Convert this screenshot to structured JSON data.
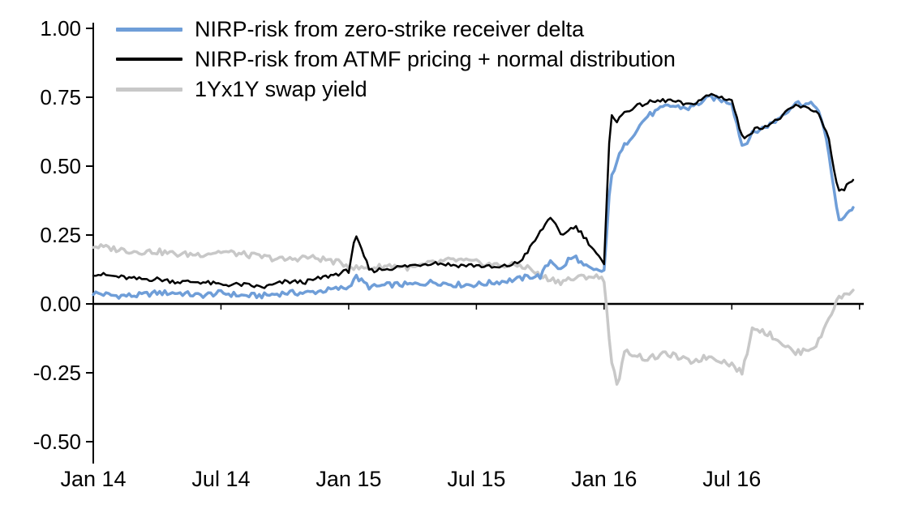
{
  "chart_data": {
    "type": "line",
    "title": "",
    "xlabel": "",
    "ylabel": "",
    "grid": false,
    "legend_position": "top-left",
    "zero_line": true,
    "x_unit": "months since Jan 2014",
    "xlim": [
      0,
      36.2
    ],
    "ylim": [
      -0.5,
      1.0
    ],
    "y_ticks": [
      1.0,
      0.75,
      0.5,
      0.25,
      0.0,
      -0.25,
      -0.5
    ],
    "y_tick_labels": [
      "1.00",
      "0.75",
      "0.50",
      "0.25",
      "0.00",
      "-0.25",
      "-0.50"
    ],
    "x_ticks": [
      0,
      6,
      12,
      18,
      24,
      30
    ],
    "x_tick_labels": [
      "Jan 14",
      "Jul 14",
      "Jan 15",
      "Jul 15",
      "Jan 16",
      "Jul 16"
    ],
    "axis_color": "#000000",
    "x": [
      0,
      1,
      2,
      3,
      4,
      5,
      6,
      7,
      8,
      9,
      10,
      11,
      12,
      12.3,
      13,
      14,
      15,
      16,
      17,
      18,
      19,
      20,
      20.5,
      21,
      21.5,
      22,
      22.3,
      22.7,
      23,
      23.5,
      24,
      24.3,
      24.6,
      25,
      26,
      27,
      28,
      29,
      30,
      30.5,
      31,
      32,
      33,
      34,
      34.5,
      35,
      35.7
    ],
    "series": [
      {
        "id": "zero-strike-delta",
        "name": "NIRP-risk from zero-strike receiver delta",
        "color": "#6f9ed8",
        "width": 3.5,
        "values": [
          0.04,
          0.03,
          0.03,
          0.04,
          0.04,
          0.03,
          0.04,
          0.03,
          0.03,
          0.04,
          0.04,
          0.05,
          0.06,
          0.1,
          0.06,
          0.07,
          0.07,
          0.08,
          0.07,
          0.07,
          0.08,
          0.09,
          0.1,
          0.1,
          0.16,
          0.12,
          0.16,
          0.17,
          0.14,
          0.12,
          0.12,
          0.45,
          0.52,
          0.58,
          0.68,
          0.72,
          0.71,
          0.75,
          0.73,
          0.57,
          0.62,
          0.66,
          0.73,
          0.72,
          0.58,
          0.3,
          0.35
        ]
      },
      {
        "id": "atmf-normal",
        "name": "NIRP-risk from ATMF pricing + normal distribution",
        "color": "#000000",
        "width": 2.5,
        "values": [
          0.11,
          0.1,
          0.09,
          0.09,
          0.08,
          0.08,
          0.07,
          0.07,
          0.06,
          0.08,
          0.08,
          0.1,
          0.12,
          0.25,
          0.12,
          0.13,
          0.14,
          0.15,
          0.14,
          0.14,
          0.13,
          0.15,
          0.2,
          0.26,
          0.32,
          0.24,
          0.27,
          0.28,
          0.25,
          0.2,
          0.14,
          0.7,
          0.66,
          0.7,
          0.73,
          0.74,
          0.72,
          0.76,
          0.74,
          0.6,
          0.63,
          0.66,
          0.72,
          0.7,
          0.62,
          0.4,
          0.45
        ]
      },
      {
        "id": "swap-yield",
        "name": "1Yx1Y swap yield",
        "color": "#c8c8c8",
        "width": 3.5,
        "values": [
          0.21,
          0.2,
          0.19,
          0.19,
          0.18,
          0.18,
          0.19,
          0.18,
          0.17,
          0.16,
          0.17,
          0.16,
          0.14,
          0.13,
          0.13,
          0.14,
          0.13,
          0.15,
          0.16,
          0.15,
          0.14,
          0.14,
          0.13,
          0.1,
          0.09,
          0.08,
          0.09,
          0.09,
          0.1,
          0.1,
          0.09,
          -0.18,
          -0.3,
          -0.17,
          -0.2,
          -0.18,
          -0.21,
          -0.19,
          -0.22,
          -0.25,
          -0.08,
          -0.12,
          -0.18,
          -0.15,
          -0.06,
          0.02,
          0.05
        ]
      }
    ]
  }
}
